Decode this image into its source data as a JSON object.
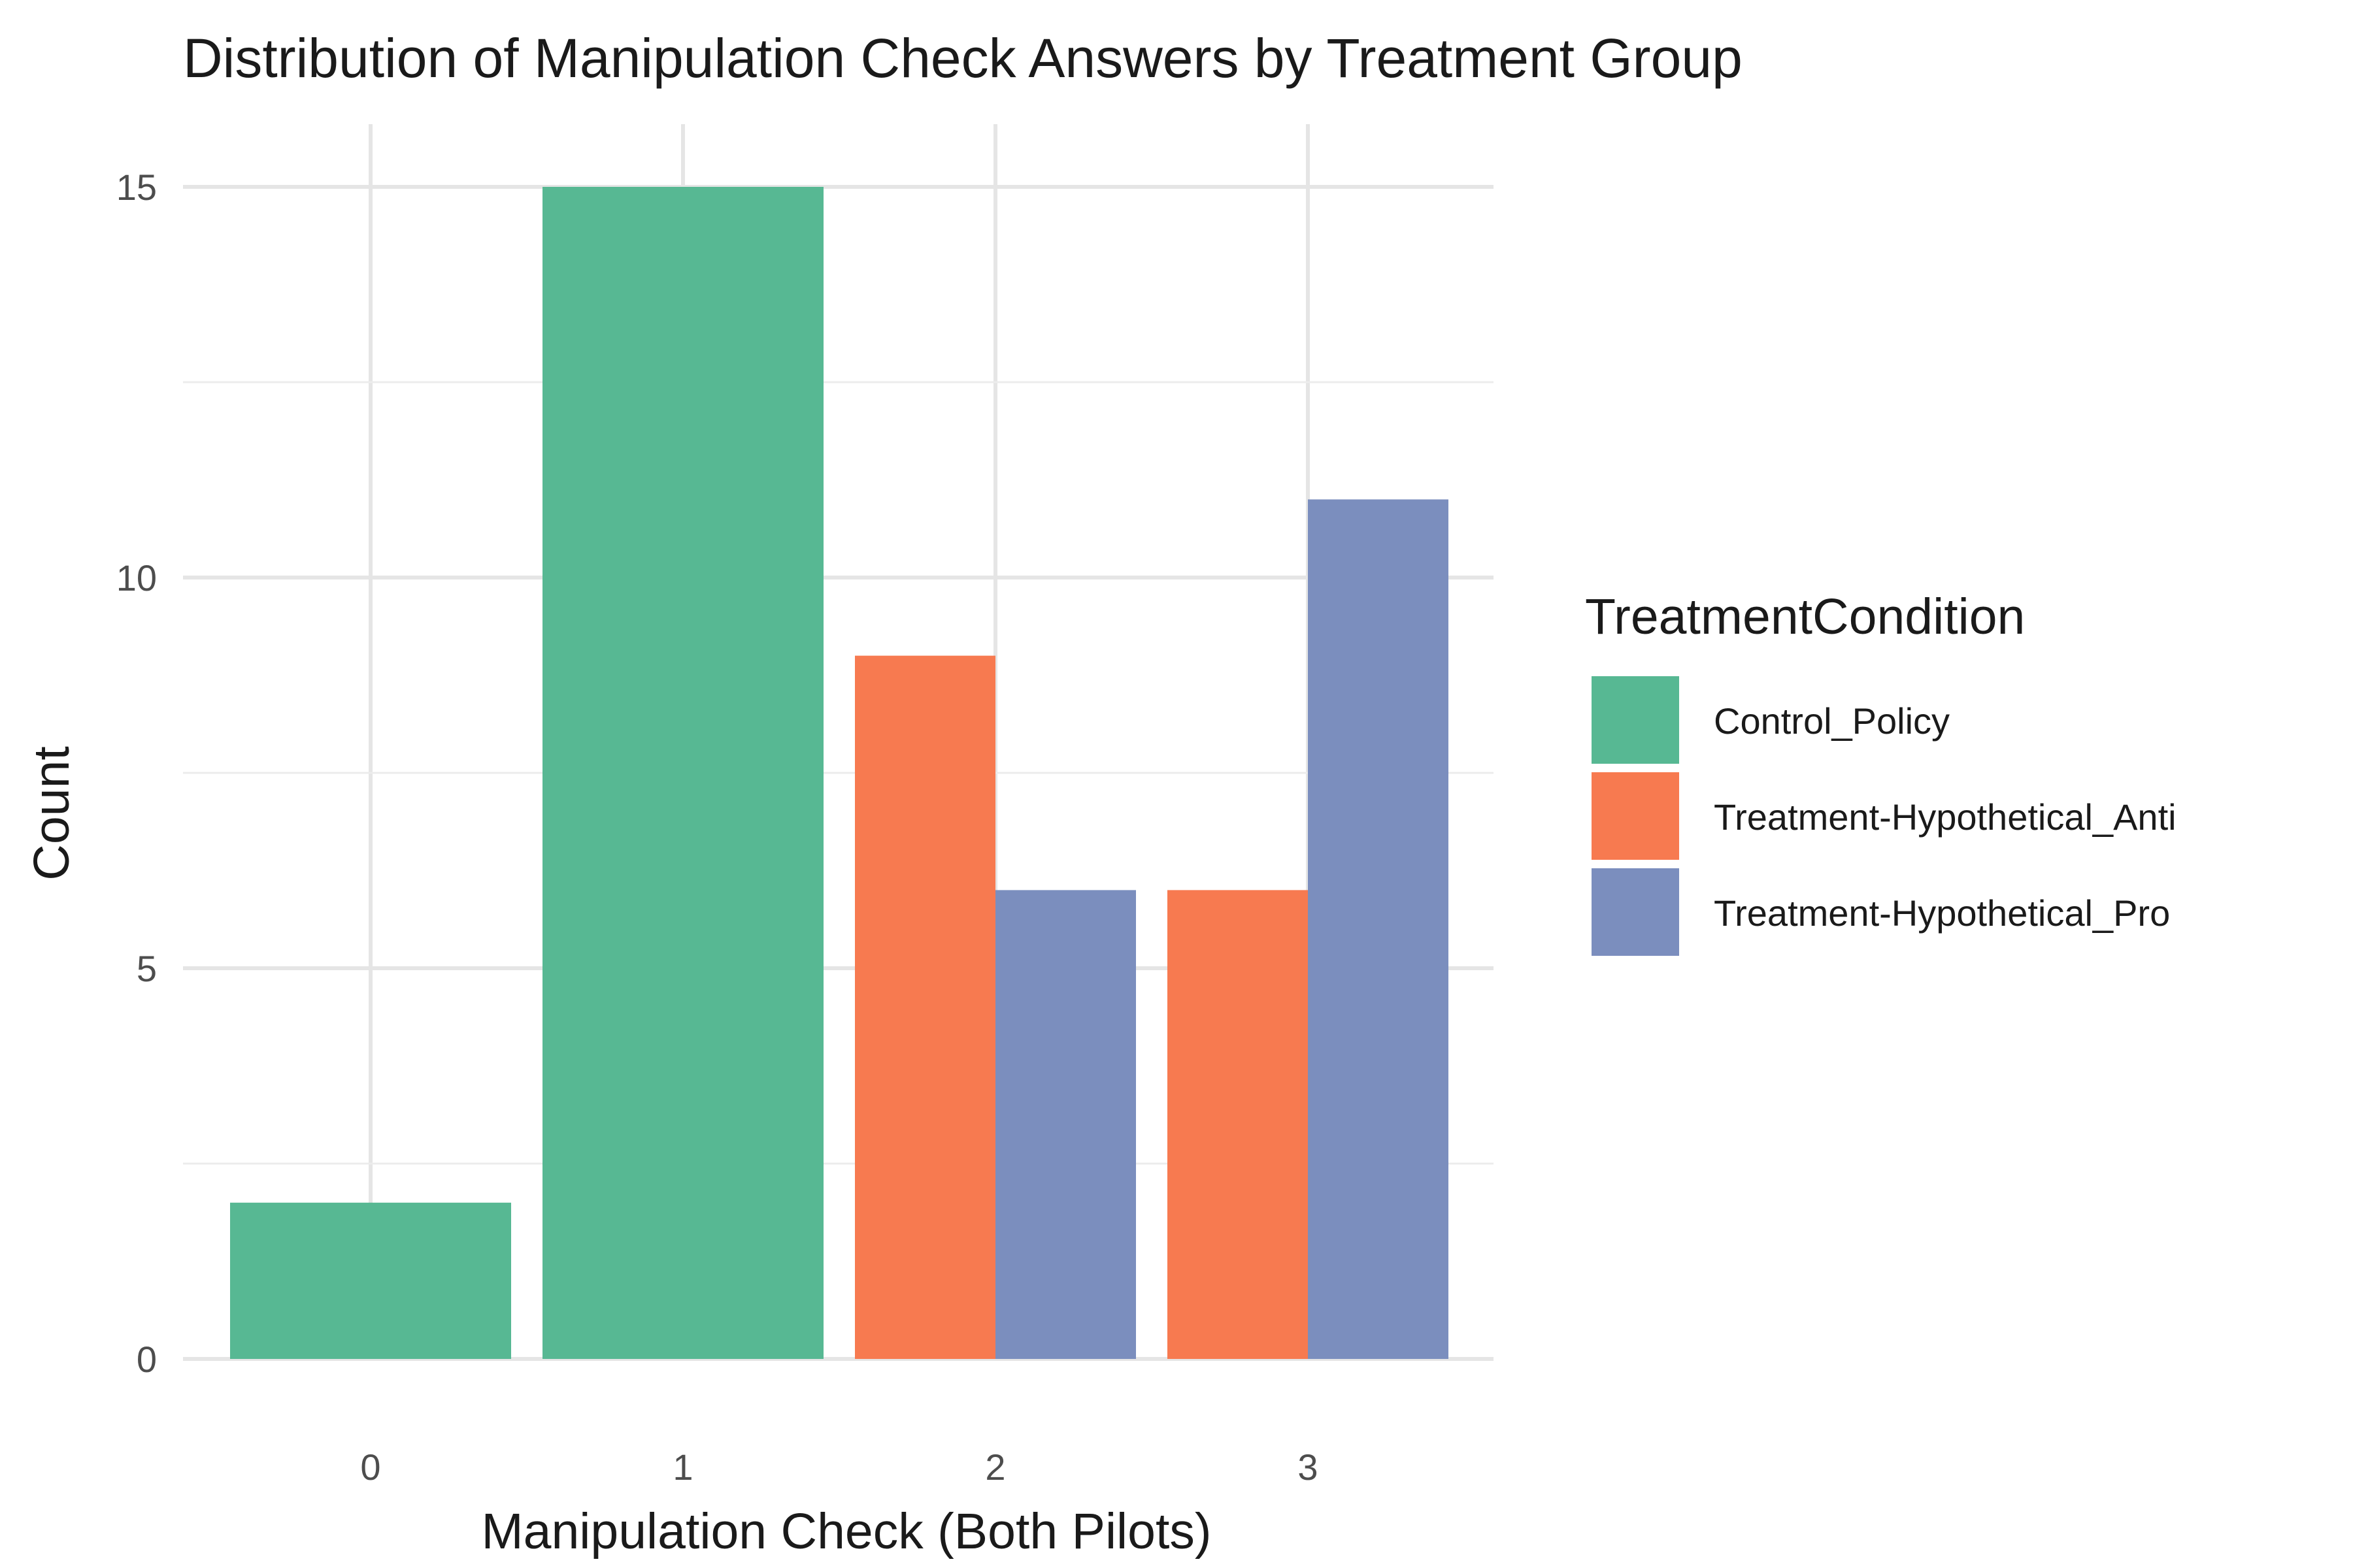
{
  "chart_data": {
    "type": "bar",
    "title": "Distribution of Manipulation Check Answers by Treatment Group",
    "xlabel": "Manipulation Check (Both Pilots)",
    "ylabel": "Count",
    "categories": [
      "0",
      "1",
      "2",
      "3"
    ],
    "ylim": [
      0,
      15
    ],
    "yticks": [
      0,
      5,
      10,
      15
    ],
    "grid": true,
    "legend": {
      "title": "TreatmentCondition",
      "position": "right"
    },
    "series": [
      {
        "name": "Control_Policy",
        "color": "#57b893",
        "values": [
          2,
          15,
          null,
          null
        ]
      },
      {
        "name": "Treatment-Hypothetical_Anti",
        "color": "#f77a50",
        "values": [
          null,
          null,
          9,
          6
        ]
      },
      {
        "name": "Treatment-Hypothetical_Pro",
        "color": "#7b8ebe",
        "values": [
          null,
          null,
          6,
          11
        ]
      }
    ]
  }
}
